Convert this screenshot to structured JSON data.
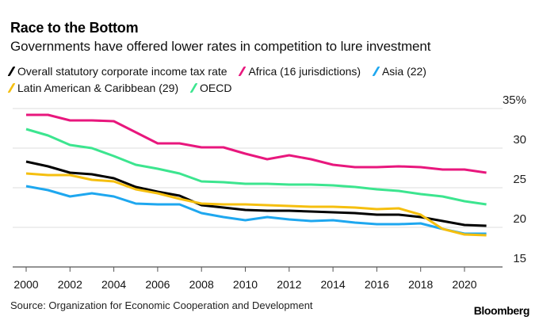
{
  "header": {
    "title": "Race to the Bottom",
    "subtitle": "Governments have offered lower rates in competition to lure investment"
  },
  "footer": {
    "source": "Source: Organization for Economic Cooperation and Development",
    "brand": "Bloomberg"
  },
  "chart_data": {
    "type": "line",
    "title": "Race to the Bottom",
    "subtitle": "Governments have offered lower rates in competition to lure investment",
    "xlabel": "",
    "ylabel": "",
    "x": [
      2000,
      2001,
      2002,
      2003,
      2004,
      2005,
      2006,
      2007,
      2008,
      2009,
      2010,
      2011,
      2012,
      2013,
      2014,
      2015,
      2016,
      2017,
      2018,
      2019,
      2020,
      2021
    ],
    "xticks": [
      "2000",
      "2002",
      "2004",
      "2006",
      "2008",
      "2010",
      "2012",
      "2014",
      "2016",
      "2018",
      "2020"
    ],
    "xtick_values": [
      2000,
      2002,
      2004,
      2006,
      2008,
      2010,
      2012,
      2014,
      2016,
      2018,
      2020
    ],
    "yticks": [
      "35%",
      "30",
      "25",
      "20",
      "15"
    ],
    "ytick_values": [
      35,
      30,
      25,
      20,
      15
    ],
    "ylim": [
      15,
      35
    ],
    "xlim": [
      2000,
      2022
    ],
    "grid": true,
    "legend_position": "top",
    "series": [
      {
        "name": "Overall statutory corporate income tax rate",
        "color": "#000000",
        "values": [
          28.3,
          27.7,
          26.9,
          26.7,
          26.2,
          25.1,
          24.5,
          24.0,
          22.8,
          22.5,
          22.2,
          22.1,
          22.1,
          22.0,
          21.9,
          21.8,
          21.6,
          21.6,
          21.3,
          20.8,
          20.3,
          20.2
        ]
      },
      {
        "name": "Africa (16 jurisdictions)",
        "color": "#e8177d",
        "values": [
          34.2,
          34.2,
          33.5,
          33.5,
          33.4,
          32.0,
          30.6,
          30.6,
          30.1,
          30.1,
          29.3,
          28.6,
          29.1,
          28.6,
          27.9,
          27.6,
          27.6,
          27.7,
          27.6,
          27.3,
          27.3,
          26.9
        ]
      },
      {
        "name": "Asia (22)",
        "color": "#1ea7ef",
        "values": [
          25.2,
          24.7,
          23.9,
          24.3,
          23.9,
          23.0,
          22.9,
          22.9,
          21.8,
          21.3,
          20.9,
          21.3,
          21.0,
          20.8,
          20.9,
          20.6,
          20.4,
          20.4,
          20.5,
          19.8,
          19.2,
          19.2
        ]
      },
      {
        "name": "Latin American & Caribbean (29)",
        "color": "#f5bf0f",
        "values": [
          26.8,
          26.6,
          26.6,
          26.0,
          25.8,
          24.8,
          24.3,
          23.6,
          23.0,
          22.9,
          22.9,
          22.8,
          22.7,
          22.6,
          22.6,
          22.5,
          22.3,
          22.4,
          21.6,
          19.8,
          19.1,
          19.0
        ]
      },
      {
        "name": "OECD",
        "color": "#3ce58f",
        "values": [
          32.4,
          31.6,
          30.4,
          30.0,
          29.0,
          27.9,
          27.4,
          26.8,
          25.8,
          25.7,
          25.5,
          25.5,
          25.4,
          25.4,
          25.3,
          25.1,
          24.8,
          24.6,
          24.2,
          23.9,
          23.3,
          22.9
        ]
      }
    ]
  }
}
